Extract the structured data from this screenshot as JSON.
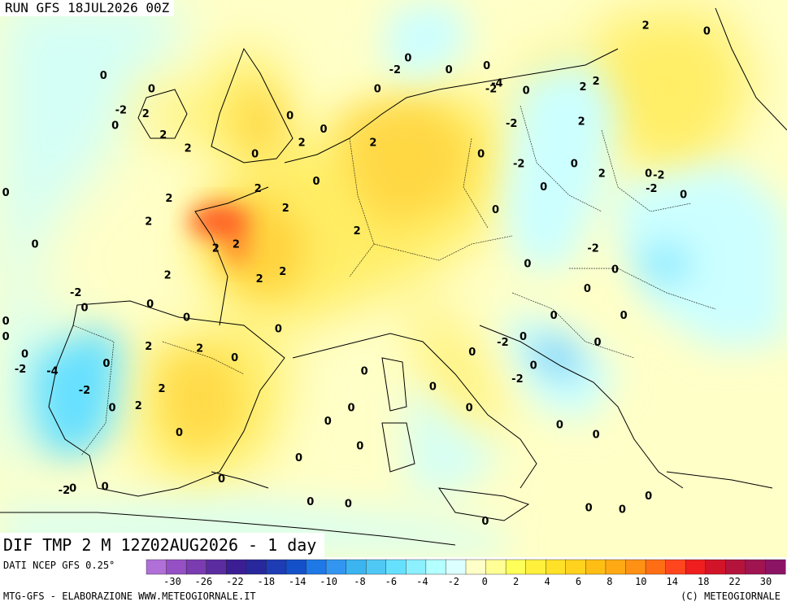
{
  "header": {
    "run_label": "RUN GFS 18JUL2026 00Z",
    "variable_label": "DIF TMP 2 M 12Z02AUG2026 - 1 day"
  },
  "footer": {
    "data_source": "DATI NCEP GFS 0.25°",
    "credit_left": "MTG-GFS - ELABORAZIONE WWW.METEOGIORNALE.IT",
    "credit_right": "(C) METEOGIORNALE"
  },
  "colors": {
    "neutral": "#ffffc8",
    "cool_light": "#ccffff",
    "cool_mid": "#66e0ff",
    "warm_light": "#ffee66",
    "warm_mid": "#ffd23c",
    "hot": "#ff5a28",
    "cold": "#3cb4f0"
  },
  "colorbar": {
    "colors": [
      "#b070d8",
      "#9450c4",
      "#7a3cb0",
      "#5a2ca0",
      "#3c1e94",
      "#28289c",
      "#1e3cb4",
      "#1450c8",
      "#1e78e6",
      "#3296f0",
      "#3cb4f0",
      "#50c8f5",
      "#66e0ff",
      "#8cf0ff",
      "#b4ffff",
      "#dcffff",
      "#ffffc8",
      "#ffff96",
      "#ffff5a",
      "#fff03c",
      "#ffe128",
      "#ffd21e",
      "#ffbe14",
      "#ffaa14",
      "#ff9114",
      "#ff6e14",
      "#ff461e",
      "#f01e1e",
      "#d21428",
      "#b4143c",
      "#a01450",
      "#8c1464"
    ],
    "tick_labels": [
      "-30",
      "-26",
      "-22",
      "-18",
      "-14",
      "-10",
      "-8",
      "-6",
      "-4",
      "-2",
      "0",
      "2",
      "4",
      "6",
      "8",
      "10",
      "14",
      "18",
      "22",
      "30"
    ]
  },
  "map_labels": [
    {
      "text": "2",
      "lon": 22.3,
      "lat": 59.5
    },
    {
      "text": "0",
      "lon": 26.5,
      "lat": 59.2
    },
    {
      "text": "0",
      "lon": -14.9,
      "lat": 56.9
    },
    {
      "text": "0",
      "lon": -11.6,
      "lat": 56.2
    },
    {
      "text": "-2",
      "lon": -13.7,
      "lat": 55.1
    },
    {
      "text": "2",
      "lon": -12.0,
      "lat": 54.9
    },
    {
      "text": "0",
      "lon": -14.1,
      "lat": 54.3
    },
    {
      "text": "2",
      "lon": -10.8,
      "lat": 53.8
    },
    {
      "text": "2",
      "lon": -9.1,
      "lat": 53.1
    },
    {
      "text": "0",
      "lon": -21.6,
      "lat": 50.8
    },
    {
      "text": "0",
      "lon": -19.6,
      "lat": 48.1
    },
    {
      "text": "-2",
      "lon": -16.8,
      "lat": 45.6
    },
    {
      "text": "0",
      "lon": -16.2,
      "lat": 44.8
    },
    {
      "text": "0",
      "lon": -21.6,
      "lat": 44.1
    },
    {
      "text": "0",
      "lon": -21.6,
      "lat": 43.3
    },
    {
      "text": "0",
      "lon": -20.3,
      "lat": 42.4
    },
    {
      "text": "-2",
      "lon": -20.6,
      "lat": 41.6
    },
    {
      "text": "-4",
      "lon": -18.4,
      "lat": 41.5
    },
    {
      "text": "0",
      "lon": -14.7,
      "lat": 41.9
    },
    {
      "text": "-2",
      "lon": -16.2,
      "lat": 40.5
    },
    {
      "text": "0",
      "lon": -14.3,
      "lat": 39.6
    },
    {
      "text": "2",
      "lon": -10.4,
      "lat": 50.5
    },
    {
      "text": "2",
      "lon": -11.8,
      "lat": 49.3
    },
    {
      "text": "2",
      "lon": -7.2,
      "lat": 47.9
    },
    {
      "text": "2",
      "lon": -10.5,
      "lat": 46.5
    },
    {
      "text": "0",
      "lon": -11.7,
      "lat": 45.0
    },
    {
      "text": "0",
      "lon": -9.2,
      "lat": 44.3
    },
    {
      "text": "2",
      "lon": -11.8,
      "lat": 42.8
    },
    {
      "text": "2",
      "lon": -8.3,
      "lat": 42.7
    },
    {
      "text": "0",
      "lon": -5.9,
      "lat": 42.2
    },
    {
      "text": "2",
      "lon": -10.9,
      "lat": 40.6
    },
    {
      "text": "2",
      "lon": -12.5,
      "lat": 39.7
    },
    {
      "text": "0",
      "lon": -2.9,
      "lat": 43.7
    },
    {
      "text": "2",
      "lon": -4.2,
      "lat": 46.3
    },
    {
      "text": "2",
      "lon": -4.3,
      "lat": 51.0
    },
    {
      "text": "0",
      "lon": -4.5,
      "lat": 52.8
    },
    {
      "text": "0",
      "lon": -2.1,
      "lat": 54.8
    },
    {
      "text": "0",
      "lon": 0.2,
      "lat": 54.1
    },
    {
      "text": "2",
      "lon": -1.3,
      "lat": 53.4
    },
    {
      "text": "2",
      "lon": 3.6,
      "lat": 53.4
    },
    {
      "text": "2",
      "lon": 2.5,
      "lat": 48.8
    },
    {
      "text": "0",
      "lon": 6.0,
      "lat": 57.8
    },
    {
      "text": "-2",
      "lon": 5.1,
      "lat": 57.2
    },
    {
      "text": "0",
      "lon": 3.9,
      "lat": 56.2
    },
    {
      "text": "0",
      "lon": 8.8,
      "lat": 57.2
    },
    {
      "text": "0",
      "lon": 11.4,
      "lat": 57.4
    },
    {
      "text": "-4",
      "lon": 12.1,
      "lat": 56.5
    },
    {
      "text": "-2",
      "lon": 11.7,
      "lat": 56.2
    },
    {
      "text": "0",
      "lon": 14.1,
      "lat": 56.1
    },
    {
      "text": "2",
      "lon": 18.0,
      "lat": 56.3
    },
    {
      "text": "2",
      "lon": 18.9,
      "lat": 56.6
    },
    {
      "text": "2",
      "lon": 17.9,
      "lat": 54.5
    },
    {
      "text": "-2",
      "lon": 13.1,
      "lat": 54.4
    },
    {
      "text": "0",
      "lon": 11.0,
      "lat": 52.8
    },
    {
      "text": "-2",
      "lon": 13.6,
      "lat": 52.3
    },
    {
      "text": "0",
      "lon": 17.4,
      "lat": 52.3
    },
    {
      "text": "2",
      "lon": 19.3,
      "lat": 51.8
    },
    {
      "text": "0",
      "lon": 22.5,
      "lat": 51.8
    },
    {
      "text": "-2",
      "lon": 23.2,
      "lat": 51.7
    },
    {
      "text": "-2",
      "lon": 22.7,
      "lat": 51.0
    },
    {
      "text": "0",
      "lon": 24.9,
      "lat": 50.7
    },
    {
      "text": "0",
      "lon": 15.3,
      "lat": 51.1
    },
    {
      "text": "0",
      "lon": 12.0,
      "lat": 49.9
    },
    {
      "text": "-2",
      "lon": 18.7,
      "lat": 47.9
    },
    {
      "text": "0",
      "lon": 14.2,
      "lat": 47.1
    },
    {
      "text": "0",
      "lon": 20.2,
      "lat": 46.8
    },
    {
      "text": "0",
      "lon": 18.3,
      "lat": 45.8
    },
    {
      "text": "0",
      "lon": 16.0,
      "lat": 44.4
    },
    {
      "text": "0",
      "lon": 20.8,
      "lat": 44.4
    },
    {
      "text": "0",
      "lon": 19.0,
      "lat": 43.0
    },
    {
      "text": "-2",
      "lon": 12.5,
      "lat": 43.0
    },
    {
      "text": "0",
      "lon": 13.9,
      "lat": 43.3
    },
    {
      "text": "0",
      "lon": 10.4,
      "lat": 42.5
    },
    {
      "text": "-2",
      "lon": 13.5,
      "lat": 41.1
    },
    {
      "text": "0",
      "lon": 14.6,
      "lat": 41.8
    },
    {
      "text": "0",
      "lon": 7.7,
      "lat": 40.7
    },
    {
      "text": "0",
      "lon": 10.2,
      "lat": 39.6
    },
    {
      "text": "0",
      "lon": 16.4,
      "lat": 38.7
    },
    {
      "text": "0",
      "lon": 18.9,
      "lat": 38.2
    },
    {
      "text": "0",
      "lon": 22.5,
      "lat": 35.0
    },
    {
      "text": "0",
      "lon": 20.7,
      "lat": 34.3
    },
    {
      "text": "0",
      "lon": 18.4,
      "lat": 34.4
    },
    {
      "text": "0",
      "lon": 11.3,
      "lat": 33.7
    },
    {
      "text": "0",
      "lon": 3.0,
      "lat": 41.5
    },
    {
      "text": "0",
      "lon": 2.1,
      "lat": 39.6
    },
    {
      "text": "0",
      "lon": 0.5,
      "lat": 38.9
    },
    {
      "text": "0",
      "lon": -1.5,
      "lat": 37.0
    },
    {
      "text": "0",
      "lon": -6.8,
      "lat": 35.9
    },
    {
      "text": "0",
      "lon": -9.7,
      "lat": 38.3
    },
    {
      "text": "-2",
      "lon": -17.6,
      "lat": 35.3
    },
    {
      "text": "0",
      "lon": -17.0,
      "lat": 35.4
    },
    {
      "text": "0",
      "lon": -0.7,
      "lat": 34.7
    },
    {
      "text": "0",
      "lon": -14.8,
      "lat": 35.5
    },
    {
      "text": "0",
      "lon": 2.7,
      "lat": 37.6
    },
    {
      "text": "0",
      "lon": 1.9,
      "lat": 34.6
    },
    {
      "text": "2",
      "lon": -2.6,
      "lat": 46.7
    },
    {
      "text": "2",
      "lon": -5.8,
      "lat": 48.1
    },
    {
      "text": "0",
      "lon": -0.3,
      "lat": 51.4
    },
    {
      "text": "2",
      "lon": -2.4,
      "lat": 50.0
    }
  ]
}
